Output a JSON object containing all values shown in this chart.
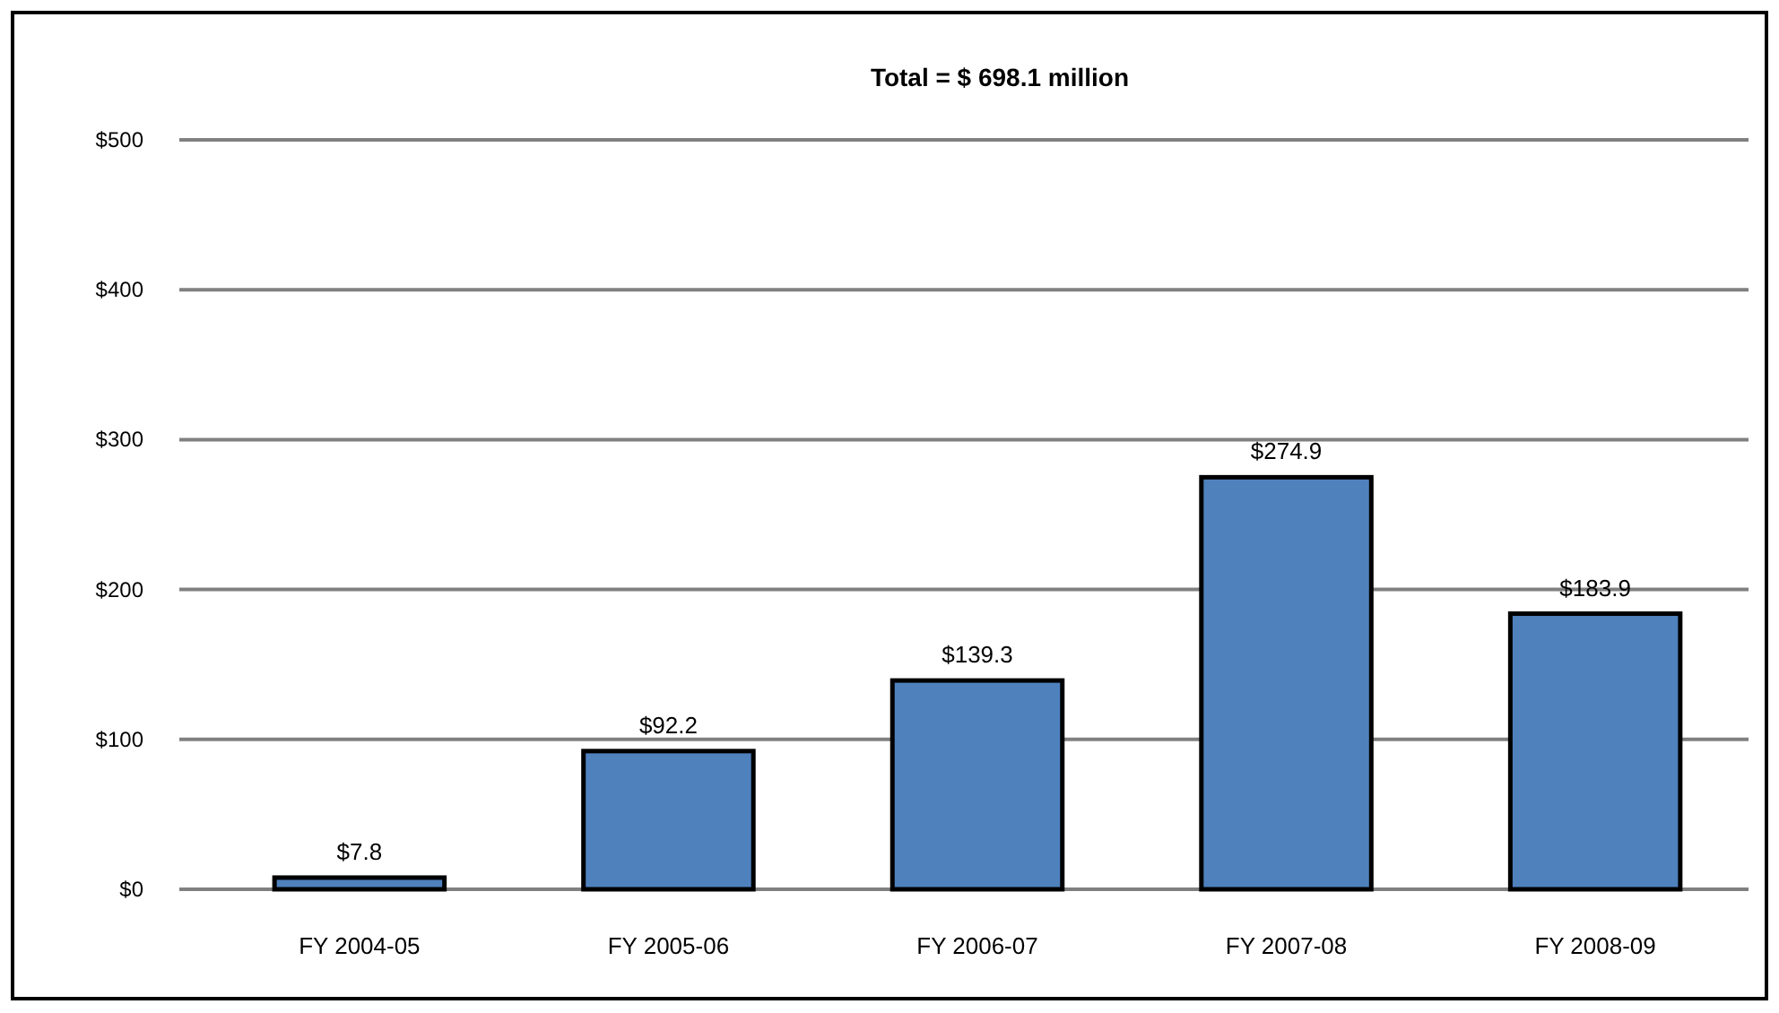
{
  "chart_data": {
    "type": "bar",
    "title": "Total = $ 698.1 million",
    "categories": [
      "FY 2004-05",
      "FY 2005-06",
      "FY 2006-07",
      "FY 2007-08",
      "FY 2008-09"
    ],
    "values": [
      7.8,
      92.2,
      139.3,
      274.9,
      183.9
    ],
    "value_labels": [
      "$7.8",
      "$92.2",
      "$139.3",
      "$274.9",
      "$183.9"
    ],
    "color": "#4f81bd",
    "ylim": [
      0,
      500
    ],
    "yticks": [
      {
        "value": 0,
        "label": "$0"
      },
      {
        "value": 100,
        "label": "$100"
      },
      {
        "value": 200,
        "label": "$200"
      },
      {
        "value": 300,
        "label": "$300"
      },
      {
        "value": 400,
        "label": "$400"
      },
      {
        "value": 500,
        "label": "$500"
      }
    ],
    "grid": "y"
  }
}
